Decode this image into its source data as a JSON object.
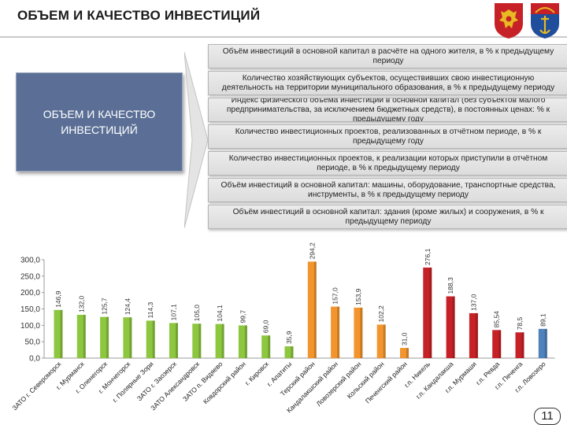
{
  "header": {
    "title": "ОБЪЕМ И КАЧЕСТВО ИНВЕСТИЦИЙ"
  },
  "emblems": [
    {
      "name": "russia-coat-of-arms-icon",
      "color": "#c62127"
    },
    {
      "name": "murmansk-region-coat-of-arms-icon",
      "color": "#c62127"
    }
  ],
  "side_box": {
    "label_line1": "ОБЪЕМ И КАЧЕСТВО",
    "label_line2": "ИНВЕСТИЦИЙ",
    "color": "#5b6f96"
  },
  "items": [
    "Объём инвестиций в основной капитал в расчёте на одного жителя, в % к предыдущему периоду",
    "Количество хозяйствующих субъектов, осуществивших свою инвестиционную деятельность на территории муниципального образования, в % к предыдущему периоду",
    "Индекс физического объема инвестиций в основной капитал (без субъектов малого предпринимательства, за исключением бюджетных средств), в постоянных ценах: % к предыдущему году",
    "Количество инвестиционных проектов, реализованных в отчётном периоде, в % к предыдущему году",
    "Количество инвестиционных проектов, к реализации которых приступили в отчётном периоде, в % к предыдущему периоду",
    "Объём инвестиций в основной капитал: машины, оборудование, транспортные средства, инструменты, в % к предыдущему периоду",
    "Объём инвестиций в основной капитал: здания (кроме жилых) и сооружения, в % к предыдущему периоду"
  ],
  "chart_data": {
    "type": "bar",
    "ylim": [
      0,
      300
    ],
    "yticks": [
      "0,0",
      "50,0",
      "100,0",
      "150,0",
      "200,0",
      "250,0",
      "300,0"
    ],
    "grid": false,
    "categories": [
      "ЗАТО г. Североморск",
      "г. Мурманск",
      "г. Оленегорск",
      "г. Мончегорск",
      "г. Полярные Зори",
      "ЗАТО г. Заозерск",
      "ЗАТО Александровск",
      "ЗАТО п. Видяево",
      "Ковдорский район",
      "г. Кировск",
      "г. Апатиты",
      "Терский район",
      "Кандалакшский район",
      "Ловозерский район",
      "Кольский район",
      "Печенгский район",
      "г.п. Никель",
      "г.п. Кандалакша",
      "г.п. Мурмаши",
      "г.п. Ревда",
      "г.п. Печенга",
      "г.п. Ловозеро"
    ],
    "values": [
      146.9,
      132.0,
      125.7,
      124.4,
      114.3,
      107.1,
      105.0,
      104.1,
      99.7,
      69.0,
      35.9,
      294.2,
      157.0,
      153.9,
      102.2,
      31.0,
      276.1,
      188.3,
      137.0,
      85.54,
      78.5,
      89.1
    ],
    "value_labels": [
      "146,9",
      "132,0",
      "125,7",
      "124,4",
      "114,3",
      "107,1",
      "105,0",
      "104,1",
      "99,7",
      "69,0",
      "35,9",
      "294,2",
      "157,0",
      "153,9",
      "102,2",
      "31,0",
      "276,1",
      "188,3",
      "137,0",
      "85,54",
      "78,5",
      "89,1"
    ],
    "colors": [
      "#8dc63f",
      "#8dc63f",
      "#8dc63f",
      "#8dc63f",
      "#8dc63f",
      "#8dc63f",
      "#8dc63f",
      "#8dc63f",
      "#8dc63f",
      "#8dc63f",
      "#8dc63f",
      "#f2952e",
      "#f2952e",
      "#f2952e",
      "#f2952e",
      "#f2952e",
      "#c62127",
      "#c62127",
      "#c62127",
      "#c62127",
      "#c62127",
      "#4f81bd"
    ]
  },
  "footer": {
    "page_number": "11"
  }
}
